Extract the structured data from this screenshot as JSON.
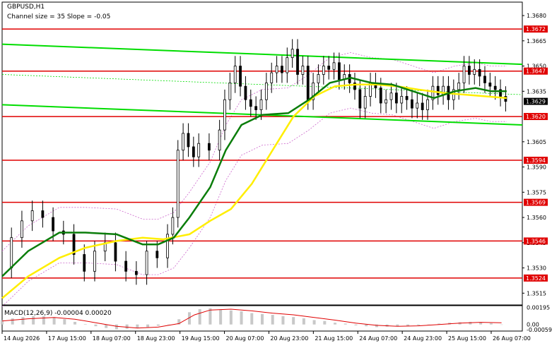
{
  "header": {
    "symbol": "GBPUSD,H1",
    "channel_info": "Channel size = 35 Slope = -0.05"
  },
  "macd": {
    "label": "MACD(12,26,9) -0.00004 0.00020",
    "ticks": [
      "0.00195",
      "0.00",
      "-0.00059"
    ]
  },
  "price_ticks": [
    "1.3680",
    "1.3665",
    "1.3650",
    "1.3635",
    "1.3605",
    "1.3590",
    "1.3575",
    "1.3560",
    "1.3545",
    "1.3530",
    "1.3515"
  ],
  "time_labels": [
    "14 Aug 2026",
    "17 Aug 15:00",
    "18 Aug 07:00",
    "18 Aug 23:00",
    "19 Aug 15:00",
    "20 Aug 07:00",
    "20 Aug 23:00",
    "21 Aug 15:00",
    "24 Aug 07:00",
    "24 Aug 23:00",
    "25 Aug 15:00",
    "26 Aug 07:00"
  ],
  "chart_data": {
    "type": "line",
    "title": "GBPUSD,H1",
    "ylim": [
      1.3508,
      1.3688
    ],
    "current_price": "1.3629",
    "levels": [
      {
        "label": "1.3672",
        "value": 1.3672,
        "color": "#e00000"
      },
      {
        "label": "1.3647",
        "value": 1.3647,
        "color": "#e00000"
      },
      {
        "label": "1.3620",
        "value": 1.362,
        "color": "#e00000"
      },
      {
        "label": "1.3594",
        "value": 1.3594,
        "color": "#e00000"
      },
      {
        "label": "1.3569",
        "value": 1.3569,
        "color": "#e00000"
      },
      {
        "label": "1.3546",
        "value": 1.3546,
        "color": "#e00000"
      },
      {
        "label": "1.3524",
        "value": 1.3524,
        "color": "#e00000"
      }
    ],
    "channel_upper": [
      [
        0,
        1.3663
      ],
      [
        1,
        1.3651
      ]
    ],
    "channel_lower": [
      [
        0,
        1.3627
      ],
      [
        1,
        1.3615
      ]
    ],
    "ma_green": [
      [
        0.0,
        1.3525
      ],
      [
        0.05,
        1.354
      ],
      [
        0.11,
        1.3551
      ],
      [
        0.16,
        1.3551
      ],
      [
        0.22,
        1.355
      ],
      [
        0.27,
        1.3544
      ],
      [
        0.3,
        1.3544
      ],
      [
        0.33,
        1.3548
      ],
      [
        0.36,
        1.356
      ],
      [
        0.4,
        1.3578
      ],
      [
        0.43,
        1.36
      ],
      [
        0.46,
        1.3615
      ],
      [
        0.5,
        1.3621
      ],
      [
        0.55,
        1.3622
      ],
      [
        0.59,
        1.363
      ],
      [
        0.63,
        1.364
      ],
      [
        0.67,
        1.3643
      ],
      [
        0.71,
        1.364
      ],
      [
        0.75,
        1.3639
      ],
      [
        0.79,
        1.3635
      ],
      [
        0.83,
        1.3631
      ],
      [
        0.87,
        1.3635
      ],
      [
        0.91,
        1.3637
      ],
      [
        0.94,
        1.3635
      ],
      [
        0.97,
        1.3635
      ]
    ],
    "ma_yellow": [
      [
        0.0,
        1.3512
      ],
      [
        0.05,
        1.3525
      ],
      [
        0.11,
        1.3536
      ],
      [
        0.16,
        1.3542
      ],
      [
        0.22,
        1.3546
      ],
      [
        0.27,
        1.3548
      ],
      [
        0.31,
        1.3547
      ],
      [
        0.36,
        1.355
      ],
      [
        0.4,
        1.3558
      ],
      [
        0.44,
        1.3565
      ],
      [
        0.48,
        1.358
      ],
      [
        0.52,
        1.36
      ],
      [
        0.56,
        1.362
      ],
      [
        0.6,
        1.3632
      ],
      [
        0.64,
        1.3638
      ],
      [
        0.68,
        1.3639
      ],
      [
        0.72,
        1.3639
      ],
      [
        0.76,
        1.3638
      ],
      [
        0.8,
        1.3636
      ],
      [
        0.85,
        1.3634
      ],
      [
        0.89,
        1.3633
      ],
      [
        0.93,
        1.3632
      ],
      [
        0.97,
        1.3631
      ]
    ],
    "price_path": [
      [
        0.0,
        1.353
      ],
      [
        0.02,
        1.3548
      ],
      [
        0.04,
        1.3558
      ],
      [
        0.06,
        1.3564
      ],
      [
        0.08,
        1.356
      ],
      [
        0.1,
        1.3552
      ],
      [
        0.12,
        1.355
      ],
      [
        0.14,
        1.3538
      ],
      [
        0.16,
        1.3528
      ],
      [
        0.18,
        1.354
      ],
      [
        0.2,
        1.3545
      ],
      [
        0.22,
        1.3534
      ],
      [
        0.24,
        1.3528
      ],
      [
        0.26,
        1.3526
      ],
      [
        0.28,
        1.354
      ],
      [
        0.3,
        1.3536
      ],
      [
        0.32,
        1.355
      ],
      [
        0.33,
        1.356
      ],
      [
        0.34,
        1.36
      ],
      [
        0.35,
        1.361
      ],
      [
        0.36,
        1.3602
      ],
      [
        0.37,
        1.3596
      ],
      [
        0.38,
        1.3604
      ],
      [
        0.4,
        1.36
      ],
      [
        0.42,
        1.3612
      ],
      [
        0.43,
        1.363
      ],
      [
        0.44,
        1.364
      ],
      [
        0.45,
        1.365
      ],
      [
        0.46,
        1.3638
      ],
      [
        0.47,
        1.363
      ],
      [
        0.48,
        1.3626
      ],
      [
        0.49,
        1.3624
      ],
      [
        0.5,
        1.363
      ],
      [
        0.51,
        1.364
      ],
      [
        0.52,
        1.3646
      ],
      [
        0.53,
        1.365
      ],
      [
        0.54,
        1.3646
      ],
      [
        0.55,
        1.3655
      ],
      [
        0.56,
        1.366
      ],
      [
        0.57,
        1.3645
      ],
      [
        0.58,
        1.365
      ],
      [
        0.59,
        1.363
      ],
      [
        0.6,
        1.364
      ],
      [
        0.61,
        1.3645
      ],
      [
        0.62,
        1.365
      ],
      [
        0.63,
        1.3648
      ],
      [
        0.64,
        1.3652
      ],
      [
        0.65,
        1.3642
      ],
      [
        0.66,
        1.3645
      ],
      [
        0.67,
        1.364
      ],
      [
        0.68,
        1.3636
      ],
      [
        0.69,
        1.3625
      ],
      [
        0.7,
        1.3632
      ],
      [
        0.71,
        1.364
      ],
      [
        0.72,
        1.3637
      ],
      [
        0.73,
        1.3628
      ],
      [
        0.74,
        1.363
      ],
      [
        0.75,
        1.3634
      ],
      [
        0.76,
        1.3628
      ],
      [
        0.77,
        1.3632
      ],
      [
        0.78,
        1.363
      ],
      [
        0.79,
        1.3625
      ],
      [
        0.8,
        1.3628
      ],
      [
        0.81,
        1.3624
      ],
      [
        0.82,
        1.363
      ],
      [
        0.83,
        1.3638
      ],
      [
        0.84,
        1.3633
      ],
      [
        0.85,
        1.3638
      ],
      [
        0.86,
        1.363
      ],
      [
        0.87,
        1.3636
      ],
      [
        0.88,
        1.364
      ],
      [
        0.89,
        1.365
      ],
      [
        0.9,
        1.3645
      ],
      [
        0.91,
        1.3648
      ],
      [
        0.92,
        1.3644
      ],
      [
        0.93,
        1.364
      ],
      [
        0.94,
        1.3638
      ],
      [
        0.95,
        1.3636
      ],
      [
        0.96,
        1.3632
      ],
      [
        0.97,
        1.3629
      ]
    ],
    "macd_hist": [
      [
        0.0,
        0.0005
      ],
      [
        0.02,
        0.0007
      ],
      [
        0.04,
        0.00085
      ],
      [
        0.06,
        0.00095
      ],
      [
        0.08,
        0.00095
      ],
      [
        0.1,
        0.0008
      ],
      [
        0.12,
        0.0006
      ],
      [
        0.14,
        0.0003
      ],
      [
        0.16,
        5e-05
      ],
      [
        0.18,
        -0.0002
      ],
      [
        0.2,
        -0.0004
      ],
      [
        0.22,
        -0.00055
      ],
      [
        0.24,
        -0.0005
      ],
      [
        0.26,
        -0.0004
      ],
      [
        0.28,
        -0.0003
      ],
      [
        0.3,
        -0.00015
      ],
      [
        0.32,
        0.0
      ],
      [
        0.34,
        0.0006
      ],
      [
        0.36,
        0.0014
      ],
      [
        0.38,
        0.00175
      ],
      [
        0.4,
        0.00185
      ],
      [
        0.42,
        0.0017
      ],
      [
        0.44,
        0.0016
      ],
      [
        0.46,
        0.0015
      ],
      [
        0.48,
        0.0013
      ],
      [
        0.5,
        0.0012
      ],
      [
        0.52,
        0.0011
      ],
      [
        0.54,
        0.00095
      ],
      [
        0.56,
        0.00085
      ],
      [
        0.58,
        0.0007
      ],
      [
        0.6,
        0.0005
      ],
      [
        0.62,
        0.0004
      ],
      [
        0.64,
        0.0002
      ],
      [
        0.66,
        0.0001
      ],
      [
        0.68,
        -0.0001
      ],
      [
        0.7,
        -0.0002
      ],
      [
        0.72,
        -0.0003
      ],
      [
        0.74,
        -0.00025
      ],
      [
        0.76,
        -0.0002
      ],
      [
        0.78,
        -0.0002
      ],
      [
        0.8,
        -0.0001
      ],
      [
        0.82,
        0.0
      ],
      [
        0.84,
        0.0001
      ],
      [
        0.86,
        0.0002
      ],
      [
        0.88,
        0.00025
      ],
      [
        0.9,
        0.0003
      ],
      [
        0.92,
        0.00025
      ],
      [
        0.94,
        0.00015
      ],
      [
        0.96,
        -4e-05
      ]
    ],
    "macd_signal": [
      [
        0.0,
        0.0004
      ],
      [
        0.05,
        0.00065
      ],
      [
        0.1,
        0.0008
      ],
      [
        0.14,
        0.0006
      ],
      [
        0.18,
        0.0002
      ],
      [
        0.22,
        -0.0002
      ],
      [
        0.26,
        -0.0004
      ],
      [
        0.3,
        -0.0003
      ],
      [
        0.34,
        0.0001
      ],
      [
        0.37,
        0.0011
      ],
      [
        0.4,
        0.00165
      ],
      [
        0.44,
        0.00175
      ],
      [
        0.48,
        0.00155
      ],
      [
        0.52,
        0.0013
      ],
      [
        0.56,
        0.0011
      ],
      [
        0.6,
        0.0008
      ],
      [
        0.64,
        0.0005
      ],
      [
        0.68,
        0.00015
      ],
      [
        0.72,
        -0.0001
      ],
      [
        0.76,
        -0.0002
      ],
      [
        0.8,
        -0.00015
      ],
      [
        0.84,
        0.0
      ],
      [
        0.88,
        0.00015
      ],
      [
        0.92,
        0.00025
      ],
      [
        0.96,
        0.0002
      ]
    ],
    "macd_ylim": [
      -0.00075,
      0.00215
    ],
    "colors": {
      "level": "#e00000",
      "channel": "#00dd00",
      "ma_green": "#0a7d0a",
      "ma_yellow": "#ffee00",
      "candles": "#000000",
      "envelope": "#cc66cc",
      "macd_hist": "#c8c8c8",
      "macd_signal": "#e00000",
      "label_bg": "#e00000",
      "label_text": "#ffffff"
    }
  }
}
